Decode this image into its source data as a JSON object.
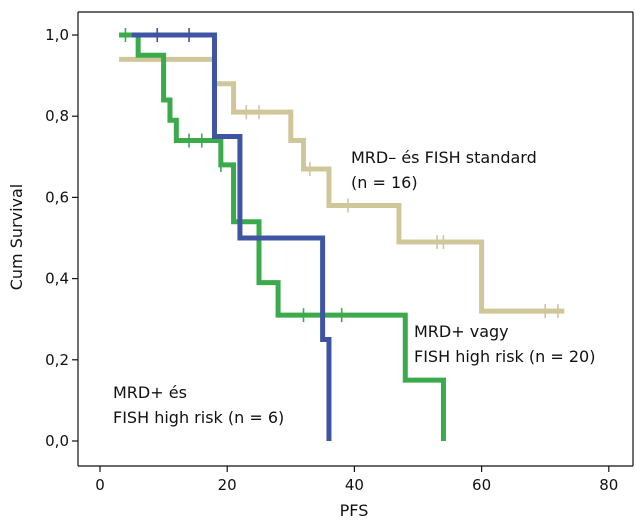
{
  "chart_data": {
    "type": "line",
    "xlabel": "PFS",
    "ylabel": "Cum Survival",
    "xlim": [
      -5,
      82
    ],
    "ylim": [
      0,
      1.05
    ],
    "xticks": [
      0,
      20,
      40,
      60,
      80
    ],
    "xtick_labels": [
      "0",
      "20",
      "40",
      "60",
      "80"
    ],
    "yticks": [
      0.0,
      0.2,
      0.4,
      0.6,
      0.8,
      1.0
    ],
    "ytick_labels": [
      "0,0",
      "0,2",
      "0,4",
      "0,6",
      "0,8",
      "1,0"
    ],
    "grid": false,
    "series": [
      {
        "id": "tan",
        "color": "#cfc79a",
        "steps": [
          [
            3,
            0.94
          ],
          [
            18,
            0.88
          ],
          [
            21,
            0.81
          ],
          [
            30,
            0.74
          ],
          [
            32,
            0.67
          ],
          [
            36,
            0.58
          ],
          [
            47,
            0.49
          ],
          [
            60,
            0.32
          ],
          [
            73,
            0.32
          ]
        ],
        "censor": [
          [
            23,
            0.81
          ],
          [
            25,
            0.81
          ],
          [
            33,
            0.67
          ],
          [
            39,
            0.58
          ],
          [
            53,
            0.49
          ],
          [
            54,
            0.49
          ],
          [
            70,
            0.32
          ],
          [
            72,
            0.32
          ]
        ]
      },
      {
        "id": "green",
        "color": "#3aaa4a",
        "steps": [
          [
            3,
            1.0
          ],
          [
            6,
            0.95
          ],
          [
            10,
            0.84
          ],
          [
            11,
            0.79
          ],
          [
            12,
            0.74
          ],
          [
            19,
            0.68
          ],
          [
            21,
            0.54
          ],
          [
            25,
            0.39
          ],
          [
            28,
            0.31
          ],
          [
            48,
            0.15
          ],
          [
            54,
            0.0
          ]
        ],
        "censor": [
          [
            4,
            1.0
          ],
          [
            14,
            0.74
          ],
          [
            16,
            0.74
          ],
          [
            19,
            0.68
          ],
          [
            32,
            0.31
          ],
          [
            38,
            0.31
          ]
        ]
      },
      {
        "id": "blue",
        "color": "#3f55a3",
        "steps": [
          [
            5,
            1.0
          ],
          [
            18,
            0.75
          ],
          [
            22,
            0.5
          ],
          [
            35,
            0.25
          ],
          [
            36,
            0.0
          ]
        ],
        "censor": [
          [
            9,
            1.0
          ],
          [
            14,
            1.0
          ]
        ]
      }
    ],
    "annotations": [
      {
        "lines": [
          "MRD– és FISH standard",
          "(n = 16)"
        ]
      },
      {
        "lines": [
          "MRD+ vagy",
          "FISH high risk (n = 20)"
        ]
      },
      {
        "lines": [
          "MRD+ és",
          "FISH high risk (n = 6)"
        ]
      }
    ]
  }
}
